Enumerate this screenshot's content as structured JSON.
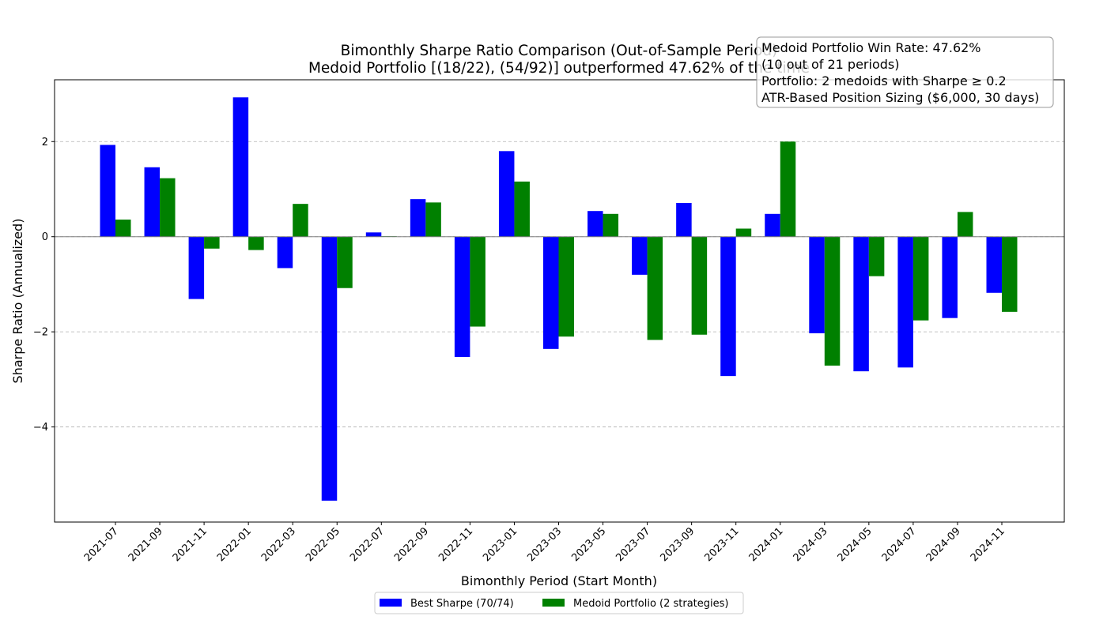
{
  "chart_data": {
    "type": "bar",
    "title_line1": "Bimonthly Sharpe Ratio Comparison (Out-of-Sample Period)",
    "title_line2": "Medoid Portfolio [(18/22), (54/92)] outperformed 47.62% of the time",
    "xlabel": "Bimonthly Period (Start Month)",
    "ylabel": "Sharpe Ratio (Annualized)",
    "ylim": [
      -6.0,
      3.3
    ],
    "yticks": [
      -4,
      -2,
      0,
      2
    ],
    "ytick_labels": [
      "−4",
      "−2",
      "0",
      "2"
    ],
    "grid": "y-dashed",
    "legend_position": "bottom-center",
    "categories": [
      "2021-07",
      "2021-09",
      "2021-11",
      "2022-01",
      "2022-03",
      "2022-05",
      "2022-07",
      "2022-09",
      "2022-11",
      "2023-01",
      "2023-03",
      "2023-05",
      "2023-07",
      "2023-09",
      "2023-11",
      "2024-01",
      "2024-03",
      "2024-05",
      "2024-07",
      "2024-09",
      "2024-11"
    ],
    "series": [
      {
        "name": "Best Sharpe (70/74)",
        "color": "#0000ff",
        "values": [
          1.93,
          1.46,
          -1.31,
          2.93,
          -0.66,
          -5.55,
          0.09,
          0.79,
          -2.53,
          1.8,
          -2.36,
          0.54,
          -0.8,
          0.71,
          -2.93,
          0.48,
          -2.03,
          -2.83,
          -2.75,
          -1.71,
          -1.18
        ]
      },
      {
        "name": "Medoid Portfolio (2 strategies)",
        "color": "#008000",
        "values": [
          0.36,
          1.23,
          -0.25,
          -0.28,
          0.69,
          -1.08,
          0.01,
          0.72,
          -1.89,
          1.16,
          -2.1,
          0.48,
          -2.17,
          -2.06,
          0.17,
          2.0,
          -2.71,
          -0.83,
          -1.76,
          0.52,
          -1.58
        ]
      }
    ],
    "annotation": [
      "Medoid Portfolio Win Rate: 47.62%",
      "(10 out of 21 periods)",
      "Portfolio: 2 medoids with Sharpe ≥ 0.2",
      "ATR-Based Position Sizing ($6,000, 30 days)"
    ]
  }
}
